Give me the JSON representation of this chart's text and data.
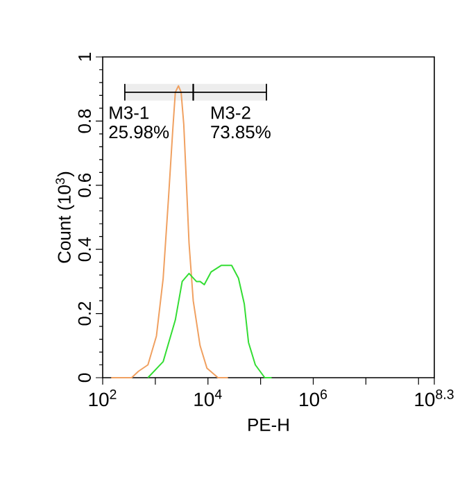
{
  "chart_data": {
    "type": "line",
    "xlabel": "PE-H",
    "ylabel": "Count (10$^{3}$)",
    "log": "x",
    "xlim": [
      100,
      199526231
    ],
    "xticks": [
      {
        "value": 100,
        "label": "10$^{2}$"
      },
      {
        "value": 1000,
        "label": null
      },
      {
        "value": 10000,
        "label": "10$^{4}$"
      },
      {
        "value": 100000,
        "label": null
      },
      {
        "value": 1000000,
        "label": "10$^{6}$"
      },
      {
        "value": 10000000,
        "label": null
      },
      {
        "value": 100000000,
        "label": null
      },
      {
        "value": 199526231,
        "label": "10$^{8.3}$"
      }
    ],
    "ylim": [
      0,
      1
    ],
    "yticks": [
      0,
      0.2,
      0.4,
      0.6,
      0.8,
      1
    ],
    "series": [
      {
        "color": "#f0a060",
        "x": [
          145,
          355,
          479,
          724,
          1050,
          1410,
          1780,
          2140,
          2400,
          2750,
          3090,
          3470,
          3890,
          4370,
          5250,
          7080,
          9550,
          15500,
          24000
        ],
        "values": [
          0,
          0,
          0.02,
          0.04,
          0.13,
          0.31,
          0.56,
          0.77,
          0.89,
          0.91,
          0.89,
          0.79,
          0.61,
          0.42,
          0.24,
          0.1,
          0.03,
          0,
          0
        ]
      },
      {
        "color": "#33dd33",
        "x": [
          724,
          1410,
          2400,
          3240,
          4370,
          6030,
          7080,
          8510,
          11500,
          17800,
          28200,
          38000,
          49000,
          58900,
          79400,
          120000,
          162000
        ],
        "values": [
          0,
          0.05,
          0.18,
          0.3,
          0.325,
          0.3,
          0.3,
          0.29,
          0.33,
          0.35,
          0.35,
          0.31,
          0.23,
          0.11,
          0.04,
          0,
          0
        ]
      }
    ],
    "bands": [
      {
        "axis": "x",
        "from": 263,
        "to": 5250,
        "label": "M3-1 25.98%",
        "color": "#ededed"
      },
      {
        "axis": "x",
        "from": 5250,
        "to": 129000,
        "label": "M3-2 73.85%",
        "color": "#ededed"
      }
    ],
    "grid": false,
    "marker": "none",
    "line_style": "solid"
  }
}
